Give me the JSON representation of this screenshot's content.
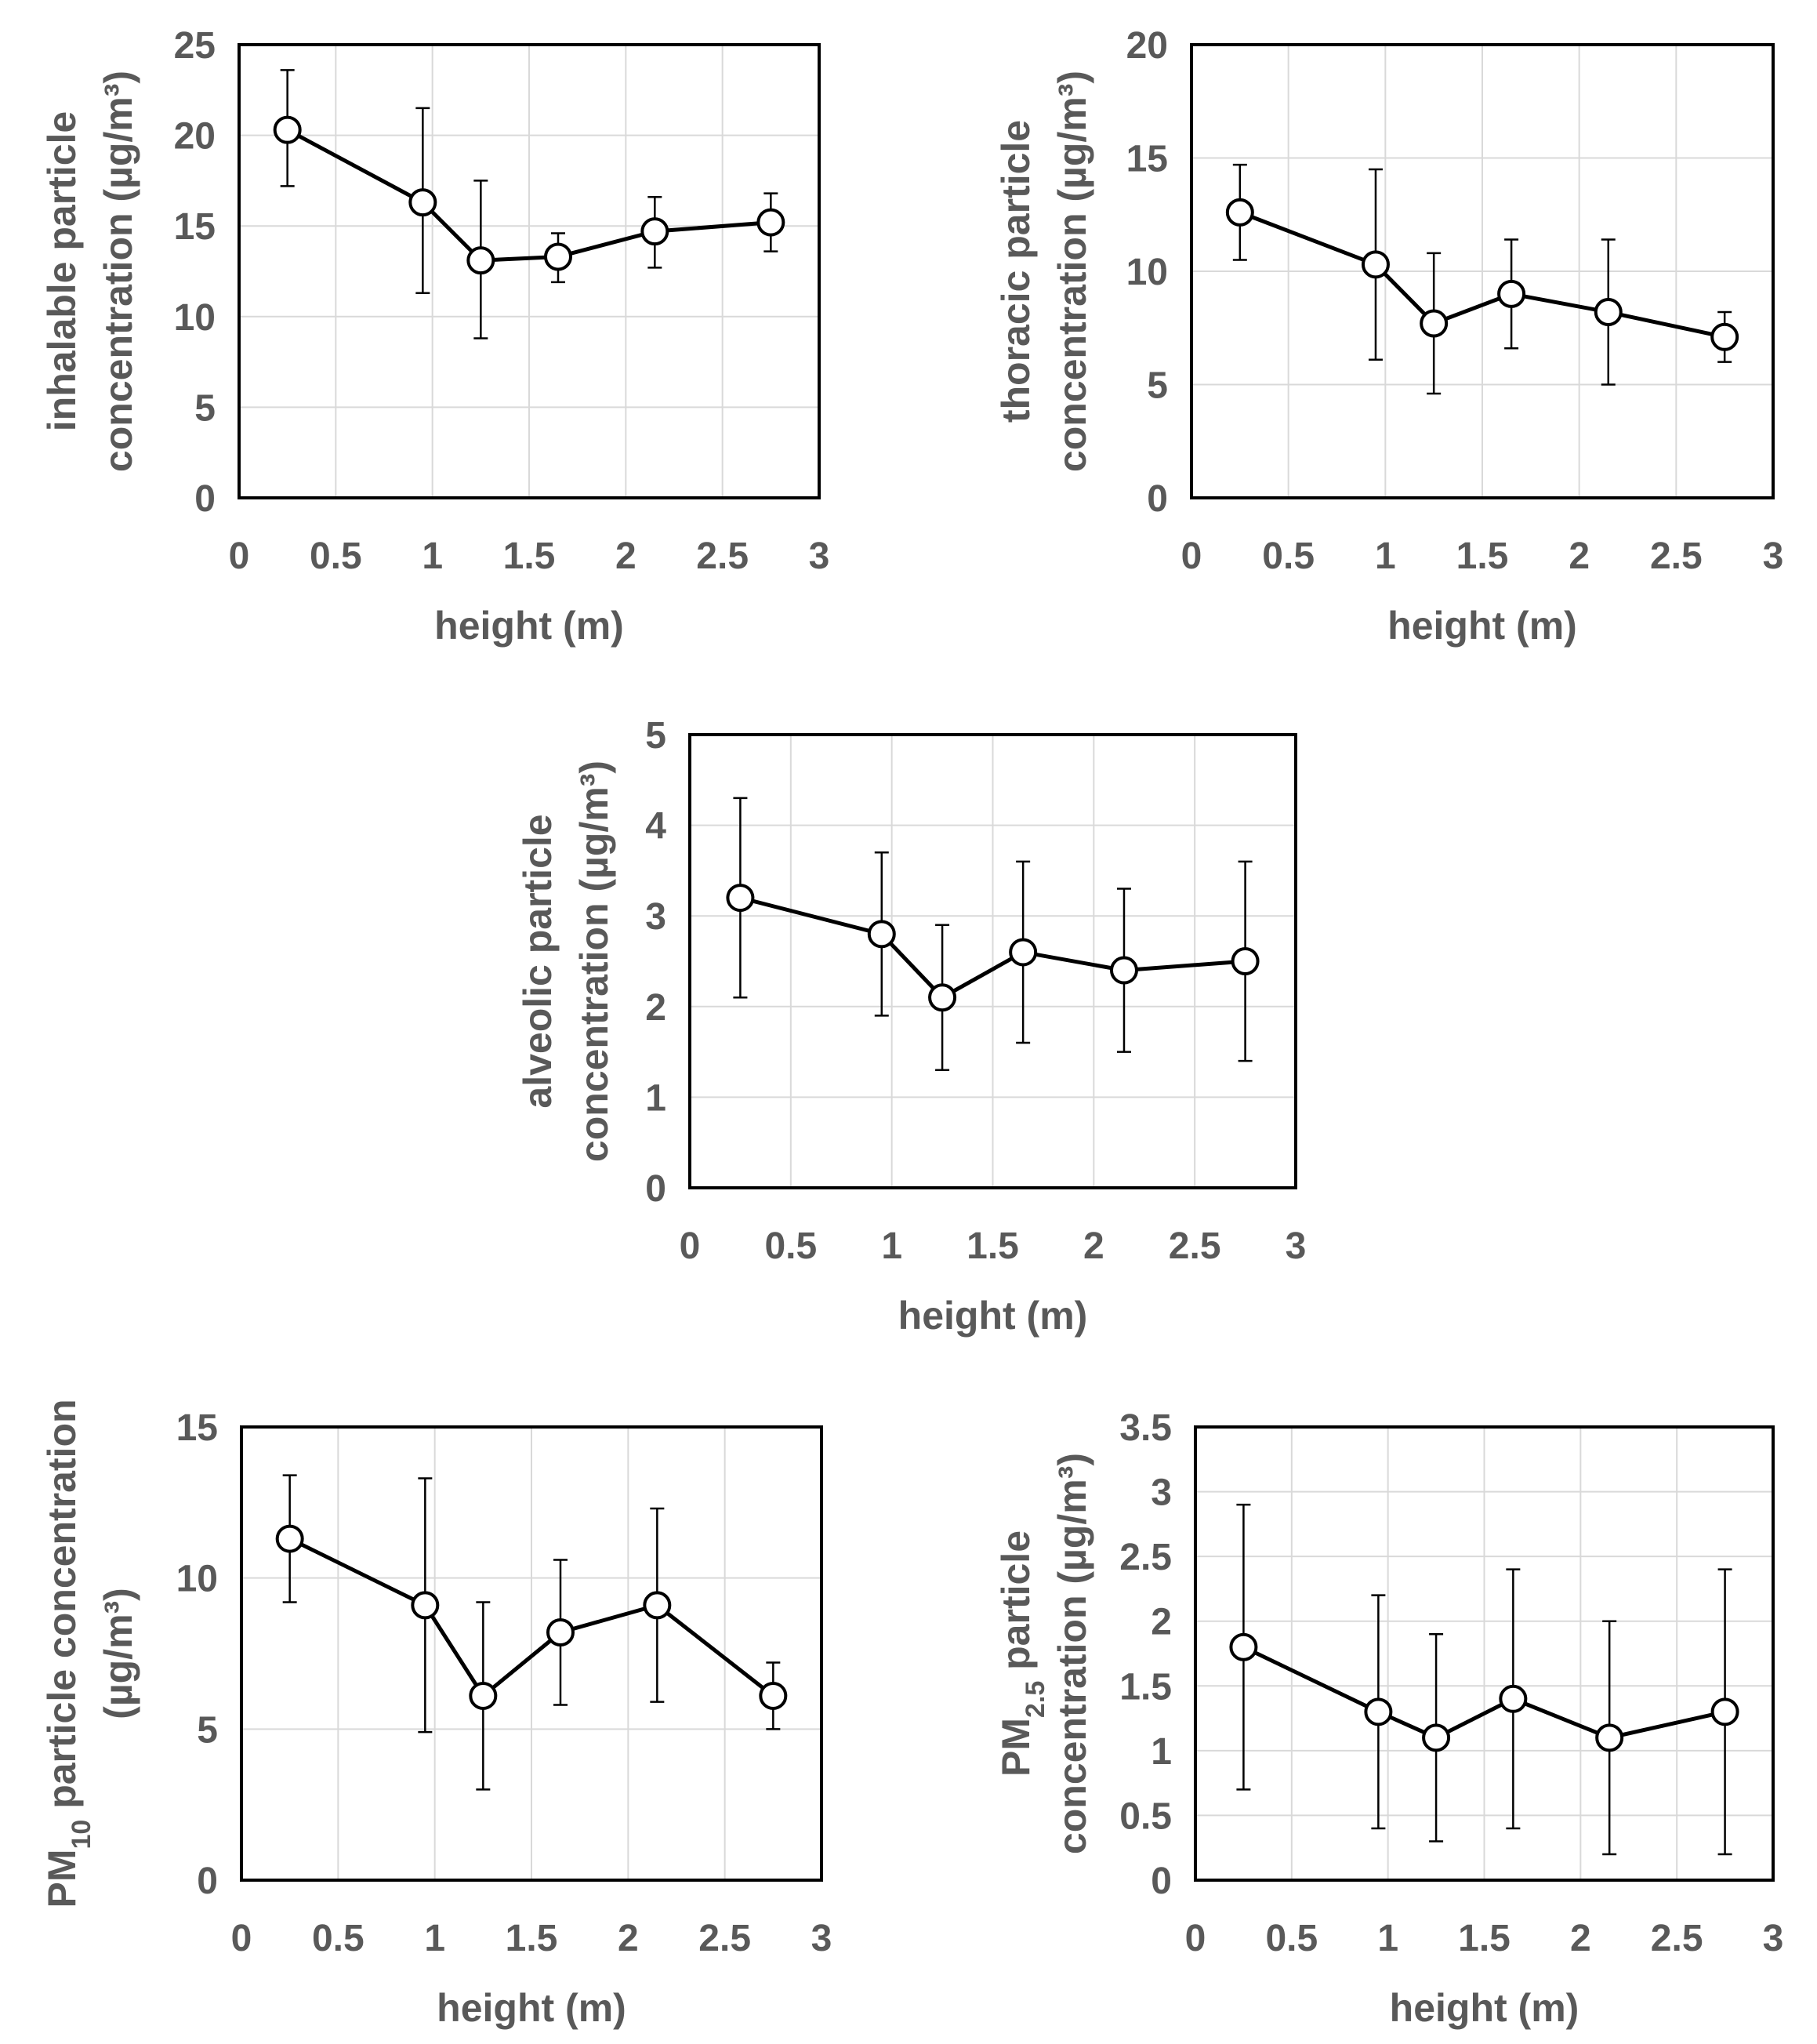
{
  "chart_data": [
    {
      "type": "line",
      "id": "inhalable",
      "x": [
        0.25,
        0.95,
        1.25,
        1.65,
        2.15,
        2.75
      ],
      "values": [
        20.3,
        16.3,
        13.1,
        13.3,
        14.7,
        15.2
      ],
      "error_low": [
        17.2,
        11.3,
        8.8,
        11.9,
        12.7,
        13.6
      ],
      "error_high": [
        23.6,
        21.5,
        17.5,
        14.6,
        16.6,
        16.8
      ],
      "xlabel": "height (m)",
      "ylabel_lines": [
        "inhalable particle",
        "concentration (µg/m³)"
      ],
      "xlim": [
        0,
        3
      ],
      "ylim": [
        0,
        25
      ],
      "xticks": [
        0,
        0.5,
        1,
        1.5,
        2,
        2.5,
        3
      ],
      "xtick_labels": [
        "0",
        "0.5",
        "1",
        "1.5",
        "2",
        "2.5",
        "3"
      ],
      "yticks": [
        0,
        5,
        10,
        15,
        20,
        25
      ],
      "ytick_labels": [
        "0",
        "5",
        "10",
        "15",
        "20",
        "25"
      ],
      "grid": true,
      "legend": "none"
    },
    {
      "type": "line",
      "id": "thoracic",
      "x": [
        0.25,
        0.95,
        1.25,
        1.65,
        2.15,
        2.75
      ],
      "values": [
        12.6,
        10.3,
        7.7,
        9.0,
        8.2,
        7.1
      ],
      "error_low": [
        10.5,
        6.1,
        4.6,
        6.6,
        5.0,
        6.0
      ],
      "error_high": [
        14.7,
        14.5,
        10.8,
        11.4,
        11.4,
        8.2
      ],
      "xlabel": "height (m)",
      "ylabel_lines": [
        "thoracic particle",
        "concentration (µg/m³)"
      ],
      "xlim": [
        0,
        3
      ],
      "ylim": [
        0,
        20
      ],
      "xticks": [
        0,
        0.5,
        1,
        1.5,
        2,
        2.5,
        3
      ],
      "xtick_labels": [
        "0",
        "0.5",
        "1",
        "1.5",
        "2",
        "2.5",
        "3"
      ],
      "yticks": [
        0,
        5,
        10,
        15,
        20
      ],
      "ytick_labels": [
        "0",
        "5",
        "10",
        "15",
        "20"
      ],
      "grid": true,
      "legend": "none"
    },
    {
      "type": "line",
      "id": "alveolic",
      "x": [
        0.25,
        0.95,
        1.25,
        1.65,
        2.15,
        2.75
      ],
      "values": [
        3.2,
        2.8,
        2.1,
        2.6,
        2.4,
        2.5
      ],
      "error_low": [
        2.1,
        1.9,
        1.3,
        1.6,
        1.5,
        1.4
      ],
      "error_high": [
        4.3,
        3.7,
        2.9,
        3.6,
        3.3,
        3.6
      ],
      "xlabel": "height (m)",
      "ylabel_lines": [
        "alveolic particle",
        "concentration (µg/m³)"
      ],
      "xlim": [
        0,
        3
      ],
      "ylim": [
        0,
        5
      ],
      "xticks": [
        0,
        0.5,
        1,
        1.5,
        2,
        2.5,
        3
      ],
      "xtick_labels": [
        "0",
        "0.5",
        "1",
        "1.5",
        "2",
        "2.5",
        "3"
      ],
      "yticks": [
        0,
        1,
        2,
        3,
        4,
        5
      ],
      "ytick_labels": [
        "0",
        "1",
        "2",
        "3",
        "4",
        "5"
      ],
      "grid": true,
      "legend": "none"
    },
    {
      "type": "line",
      "id": "pm10",
      "x": [
        0.25,
        0.95,
        1.25,
        1.65,
        2.15,
        2.75
      ],
      "values": [
        11.3,
        9.1,
        6.1,
        8.2,
        9.1,
        6.1
      ],
      "error_low": [
        9.2,
        4.9,
        3.0,
        5.8,
        5.9,
        5.0
      ],
      "error_high": [
        13.4,
        13.3,
        9.2,
        10.6,
        12.3,
        7.2
      ],
      "xlabel": "height (m)",
      "ylabel_lines": [
        "PM10 particle concentration",
        "(µg/m³)"
      ],
      "xlim": [
        0,
        3
      ],
      "ylim": [
        0,
        15
      ],
      "xticks": [
        0,
        0.5,
        1,
        1.5,
        2,
        2.5,
        3
      ],
      "xtick_labels": [
        "0",
        "0.5",
        "1",
        "1.5",
        "2",
        "2.5",
        "3"
      ],
      "yticks": [
        0,
        5,
        10,
        15
      ],
      "ytick_labels": [
        "0",
        "5",
        "10",
        "15"
      ],
      "grid": true,
      "legend": "none"
    },
    {
      "type": "line",
      "id": "pm25",
      "x": [
        0.25,
        0.95,
        1.25,
        1.65,
        2.15,
        2.75
      ],
      "values": [
        1.8,
        1.3,
        1.1,
        1.4,
        1.1,
        1.3
      ],
      "error_low": [
        0.7,
        0.4,
        0.3,
        0.4,
        0.2,
        0.2
      ],
      "error_high": [
        2.9,
        2.2,
        1.9,
        2.4,
        2.0,
        2.4
      ],
      "xlabel": "height (m)",
      "ylabel_lines": [
        "PM2.5 particle",
        "concentration (µg/m³)"
      ],
      "xlim": [
        0,
        3
      ],
      "ylim": [
        0,
        3.5
      ],
      "xticks": [
        0,
        0.5,
        1,
        1.5,
        2,
        2.5,
        3
      ],
      "xtick_labels": [
        "0",
        "0.5",
        "1",
        "1.5",
        "2",
        "2.5",
        "3"
      ],
      "yticks": [
        0,
        0.5,
        1,
        1.5,
        2,
        2.5,
        3,
        3.5
      ],
      "ytick_labels": [
        "0",
        "0.5",
        "1",
        "1.5",
        "2",
        "2.5",
        "3",
        "3.5"
      ],
      "grid": true,
      "legend": "none"
    }
  ]
}
